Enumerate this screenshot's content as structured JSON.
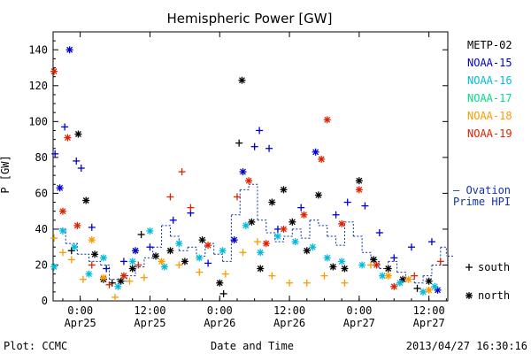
{
  "chart_data": {
    "type": "scatter",
    "title": "Hemispheric Power [GW]",
    "ylabel": "P [GW]",
    "xlabel": "Date and Time",
    "ylim": [
      0,
      150
    ],
    "y_ticks": [
      0,
      20,
      40,
      60,
      80,
      100,
      120,
      140
    ],
    "xlim": [
      "2013-04-24T19:20",
      "2013-04-27T15:15"
    ],
    "x_ticks": [
      {
        "x": "2013-04-25T00:00",
        "label": "0:00",
        "sublabel": "Apr25"
      },
      {
        "x": "2013-04-25T12:00",
        "label": "12:00",
        "sublabel": "Apr25"
      },
      {
        "x": "2013-04-26T00:00",
        "label": "0:00",
        "sublabel": "Apr26"
      },
      {
        "x": "2013-04-26T12:00",
        "label": "12:00",
        "sublabel": "Apr26"
      },
      {
        "x": "2013-04-27T00:00",
        "label": "0:00",
        "sublabel": "Apr27"
      },
      {
        "x": "2013-04-27T12:00",
        "label": "12:00",
        "sublabel": "Apr27"
      }
    ],
    "legend_placement": "right",
    "series": [
      {
        "name": "METP-02",
        "color": "#000000",
        "points": [
          {
            "x": "2013-04-24T22:30",
            "y": 28,
            "m": "south"
          },
          {
            "x": "2013-04-24T23:40",
            "y": 93,
            "m": "north"
          },
          {
            "x": "2013-04-25T01:00",
            "y": 56,
            "m": "north"
          },
          {
            "x": "2013-04-25T02:30",
            "y": 26,
            "m": "north"
          },
          {
            "x": "2013-04-25T04:00",
            "y": 12,
            "m": "north"
          },
          {
            "x": "2013-04-25T05:30",
            "y": 10,
            "m": "south"
          },
          {
            "x": "2013-04-25T07:00",
            "y": 11,
            "m": "north"
          },
          {
            "x": "2013-04-25T09:00",
            "y": 18,
            "m": "north"
          },
          {
            "x": "2013-04-25T10:30",
            "y": 37,
            "m": "south"
          },
          {
            "x": "2013-04-25T13:00",
            "y": 25,
            "m": "north"
          },
          {
            "x": "2013-04-25T15:30",
            "y": 28,
            "m": "north"
          },
          {
            "x": "2013-04-25T18:00",
            "y": 22,
            "m": "north"
          },
          {
            "x": "2013-04-25T21:00",
            "y": 34,
            "m": "north"
          },
          {
            "x": "2013-04-26T00:00",
            "y": 10,
            "m": "north"
          },
          {
            "x": "2013-04-26T00:40",
            "y": 4,
            "m": "south"
          },
          {
            "x": "2013-04-26T03:20",
            "y": 88,
            "m": "south"
          },
          {
            "x": "2013-04-26T03:50",
            "y": 123,
            "m": "north"
          },
          {
            "x": "2013-04-26T05:30",
            "y": 44,
            "m": "north"
          },
          {
            "x": "2013-04-26T07:00",
            "y": 18,
            "m": "north"
          },
          {
            "x": "2013-04-26T09:00",
            "y": 55,
            "m": "north"
          },
          {
            "x": "2013-04-26T11:00",
            "y": 62,
            "m": "north"
          },
          {
            "x": "2013-04-26T12:30",
            "y": 44,
            "m": "north"
          },
          {
            "x": "2013-04-26T15:00",
            "y": 28,
            "m": "north"
          },
          {
            "x": "2013-04-26T17:00",
            "y": 59,
            "m": "north"
          },
          {
            "x": "2013-04-26T19:30",
            "y": 19,
            "m": "north"
          },
          {
            "x": "2013-04-26T21:30",
            "y": 18,
            "m": "north"
          },
          {
            "x": "2013-04-27T00:00",
            "y": 67,
            "m": "north"
          },
          {
            "x": "2013-04-27T02:30",
            "y": 23,
            "m": "north"
          },
          {
            "x": "2013-04-27T05:00",
            "y": 18,
            "m": "north"
          },
          {
            "x": "2013-04-27T07:30",
            "y": 12,
            "m": "north"
          },
          {
            "x": "2013-04-27T10:00",
            "y": 7,
            "m": "south"
          },
          {
            "x": "2013-04-27T12:00",
            "y": 11,
            "m": "north"
          }
        ]
      },
      {
        "name": "NOAA-15",
        "color": "#0000cc",
        "points": [
          {
            "x": "2013-04-24T19:40",
            "y": 82,
            "m": "south"
          },
          {
            "x": "2013-04-24T20:30",
            "y": 63,
            "m": "north"
          },
          {
            "x": "2013-04-24T21:20",
            "y": 97,
            "m": "south"
          },
          {
            "x": "2013-04-24T22:10",
            "y": 140,
            "m": "north"
          },
          {
            "x": "2013-04-24T23:20",
            "y": 78,
            "m": "south"
          },
          {
            "x": "2013-04-25T00:10",
            "y": 74,
            "m": "south"
          },
          {
            "x": "2013-04-25T02:00",
            "y": 41,
            "m": "south"
          },
          {
            "x": "2013-04-25T04:30",
            "y": 18,
            "m": "south"
          },
          {
            "x": "2013-04-25T07:30",
            "y": 22,
            "m": "south"
          },
          {
            "x": "2013-04-25T09:30",
            "y": 28,
            "m": "north"
          },
          {
            "x": "2013-04-25T12:00",
            "y": 30,
            "m": "south"
          },
          {
            "x": "2013-04-25T16:00",
            "y": 45,
            "m": "south"
          },
          {
            "x": "2013-04-25T19:00",
            "y": 49,
            "m": "south"
          },
          {
            "x": "2013-04-25T22:00",
            "y": 21,
            "m": "south"
          },
          {
            "x": "2013-04-26T02:30",
            "y": 34,
            "m": "north"
          },
          {
            "x": "2013-04-26T04:00",
            "y": 72,
            "m": "north"
          },
          {
            "x": "2013-04-26T06:00",
            "y": 86,
            "m": "south"
          },
          {
            "x": "2013-04-26T06:50",
            "y": 95,
            "m": "south"
          },
          {
            "x": "2013-04-26T08:30",
            "y": 85,
            "m": "south"
          },
          {
            "x": "2013-04-26T10:00",
            "y": 40,
            "m": "south"
          },
          {
            "x": "2013-04-26T14:00",
            "y": 52,
            "m": "south"
          },
          {
            "x": "2013-04-26T16:30",
            "y": 83,
            "m": "north"
          },
          {
            "x": "2013-04-26T20:00",
            "y": 48,
            "m": "south"
          },
          {
            "x": "2013-04-26T22:00",
            "y": 55,
            "m": "south"
          },
          {
            "x": "2013-04-27T01:00",
            "y": 53,
            "m": "south"
          },
          {
            "x": "2013-04-27T03:30",
            "y": 38,
            "m": "south"
          },
          {
            "x": "2013-04-27T06:00",
            "y": 24,
            "m": "south"
          },
          {
            "x": "2013-04-27T09:00",
            "y": 30,
            "m": "south"
          },
          {
            "x": "2013-04-27T12:30",
            "y": 33,
            "m": "south"
          },
          {
            "x": "2013-04-27T13:30",
            "y": 6,
            "m": "north"
          }
        ]
      },
      {
        "name": "NOAA-16",
        "color": "#00bbdd",
        "points": [
          {
            "x": "2013-04-24T19:30",
            "y": 19,
            "m": "north"
          },
          {
            "x": "2013-04-24T21:00",
            "y": 39,
            "m": "north"
          },
          {
            "x": "2013-04-24T23:00",
            "y": 30,
            "m": "north"
          },
          {
            "x": "2013-04-25T01:30",
            "y": 15,
            "m": "north"
          },
          {
            "x": "2013-04-25T04:00",
            "y": 24,
            "m": "north"
          },
          {
            "x": "2013-04-25T06:30",
            "y": 8,
            "m": "north"
          },
          {
            "x": "2013-04-25T09:00",
            "y": 22,
            "m": "north"
          },
          {
            "x": "2013-04-25T12:00",
            "y": 39,
            "m": "north"
          },
          {
            "x": "2013-04-25T14:30",
            "y": 19,
            "m": "north"
          },
          {
            "x": "2013-04-25T17:00",
            "y": 32,
            "m": "north"
          },
          {
            "x": "2013-04-25T20:30",
            "y": 24,
            "m": "north"
          },
          {
            "x": "2013-04-26T00:30",
            "y": 28,
            "m": "north"
          },
          {
            "x": "2013-04-26T04:30",
            "y": 42,
            "m": "north"
          },
          {
            "x": "2013-04-26T07:00",
            "y": 27,
            "m": "north"
          },
          {
            "x": "2013-04-26T10:00",
            "y": 36,
            "m": "north"
          },
          {
            "x": "2013-04-26T13:00",
            "y": 33,
            "m": "north"
          },
          {
            "x": "2013-04-26T16:00",
            "y": 30,
            "m": "north"
          },
          {
            "x": "2013-04-26T18:30",
            "y": 24,
            "m": "north"
          },
          {
            "x": "2013-04-26T21:00",
            "y": 22,
            "m": "north"
          },
          {
            "x": "2013-04-27T00:30",
            "y": 20,
            "m": "north"
          },
          {
            "x": "2013-04-27T04:00",
            "y": 14,
            "m": "north"
          },
          {
            "x": "2013-04-27T07:00",
            "y": 10,
            "m": "north"
          },
          {
            "x": "2013-04-27T11:00",
            "y": 5,
            "m": "north"
          },
          {
            "x": "2013-04-27T13:00",
            "y": 8,
            "m": "north"
          }
        ]
      },
      {
        "name": "NOAA-17",
        "color": "#00dd88",
        "points": []
      },
      {
        "name": "NOAA-18",
        "color": "#ff9900",
        "points": [
          {
            "x": "2013-04-24T19:30",
            "y": 35,
            "m": "south"
          },
          {
            "x": "2013-04-24T21:00",
            "y": 27,
            "m": "south"
          },
          {
            "x": "2013-04-24T22:30",
            "y": 23,
            "m": "south"
          },
          {
            "x": "2013-04-25T00:30",
            "y": 12,
            "m": "south"
          },
          {
            "x": "2013-04-25T02:00",
            "y": 34,
            "m": "north"
          },
          {
            "x": "2013-04-25T04:00",
            "y": 13,
            "m": "north"
          },
          {
            "x": "2013-04-25T06:00",
            "y": 2,
            "m": "south"
          },
          {
            "x": "2013-04-25T08:30",
            "y": 11,
            "m": "south"
          },
          {
            "x": "2013-04-25T11:00",
            "y": 13,
            "m": "south"
          },
          {
            "x": "2013-04-25T14:00",
            "y": 22,
            "m": "north"
          },
          {
            "x": "2013-04-25T17:00",
            "y": 20,
            "m": "south"
          },
          {
            "x": "2013-04-25T20:30",
            "y": 16,
            "m": "south"
          },
          {
            "x": "2013-04-26T01:00",
            "y": 15,
            "m": "south"
          },
          {
            "x": "2013-04-26T04:00",
            "y": 27,
            "m": "south"
          },
          {
            "x": "2013-04-26T06:30",
            "y": 33,
            "m": "south"
          },
          {
            "x": "2013-04-26T09:00",
            "y": 14,
            "m": "south"
          },
          {
            "x": "2013-04-26T12:00",
            "y": 10,
            "m": "south"
          },
          {
            "x": "2013-04-26T15:00",
            "y": 10,
            "m": "south"
          },
          {
            "x": "2013-04-26T18:00",
            "y": 14,
            "m": "south"
          },
          {
            "x": "2013-04-26T21:30",
            "y": 10,
            "m": "south"
          },
          {
            "x": "2013-04-27T02:00",
            "y": 20,
            "m": "south"
          },
          {
            "x": "2013-04-27T05:00",
            "y": 14,
            "m": "north"
          },
          {
            "x": "2013-04-27T08:30",
            "y": 12,
            "m": "north"
          },
          {
            "x": "2013-04-27T12:00",
            "y": 6,
            "m": "north"
          }
        ]
      },
      {
        "name": "NOAA-19",
        "color": "#dd2200",
        "points": [
          {
            "x": "2013-04-24T19:30",
            "y": 128,
            "m": "north"
          },
          {
            "x": "2013-04-24T21:00",
            "y": 50,
            "m": "north"
          },
          {
            "x": "2013-04-24T21:50",
            "y": 91,
            "m": "north"
          },
          {
            "x": "2013-04-24T23:30",
            "y": 42,
            "m": "north"
          },
          {
            "x": "2013-04-25T02:00",
            "y": 20,
            "m": "south"
          },
          {
            "x": "2013-04-25T05:00",
            "y": 9,
            "m": "south"
          },
          {
            "x": "2013-04-25T07:30",
            "y": 14,
            "m": "north"
          },
          {
            "x": "2013-04-25T10:00",
            "y": 20,
            "m": "south"
          },
          {
            "x": "2013-04-25T15:30",
            "y": 58,
            "m": "south"
          },
          {
            "x": "2013-04-25T17:30",
            "y": 72,
            "m": "south"
          },
          {
            "x": "2013-04-25T19:00",
            "y": 52,
            "m": "south"
          },
          {
            "x": "2013-04-25T22:00",
            "y": 31,
            "m": "north"
          },
          {
            "x": "2013-04-26T03:00",
            "y": 58,
            "m": "south"
          },
          {
            "x": "2013-04-26T05:00",
            "y": 67,
            "m": "north"
          },
          {
            "x": "2013-04-26T08:00",
            "y": 32,
            "m": "north"
          },
          {
            "x": "2013-04-26T11:00",
            "y": 40,
            "m": "north"
          },
          {
            "x": "2013-04-26T14:30",
            "y": 48,
            "m": "north"
          },
          {
            "x": "2013-04-26T17:30",
            "y": 79,
            "m": "north"
          },
          {
            "x": "2013-04-26T18:30",
            "y": 101,
            "m": "north"
          },
          {
            "x": "2013-04-26T21:00",
            "y": 43,
            "m": "north"
          },
          {
            "x": "2013-04-27T00:00",
            "y": 62,
            "m": "north"
          },
          {
            "x": "2013-04-27T03:00",
            "y": 20,
            "m": "north"
          },
          {
            "x": "2013-04-27T06:00",
            "y": 8,
            "m": "north"
          },
          {
            "x": "2013-04-27T09:30",
            "y": 14,
            "m": "south"
          },
          {
            "x": "2013-04-27T14:00",
            "y": 22,
            "m": "south"
          }
        ]
      }
    ],
    "ovation": {
      "name": "Ovation Prime HPI",
      "color": "#1133aa",
      "label_lines": [
        "— Ovation",
        "Prime HPI"
      ],
      "points": [
        [
          "2013-04-24T19:30",
          40
        ],
        [
          "2013-04-24T21:30",
          32
        ],
        [
          "2013-04-24T23:30",
          26
        ],
        [
          "2013-04-25T01:30",
          22
        ],
        [
          "2013-04-25T03:30",
          20
        ],
        [
          "2013-04-25T05:00",
          12
        ],
        [
          "2013-04-25T06:30",
          11
        ],
        [
          "2013-04-25T08:00",
          14
        ],
        [
          "2013-04-25T09:30",
          19
        ],
        [
          "2013-04-25T11:00",
          24
        ],
        [
          "2013-04-25T12:30",
          30
        ],
        [
          "2013-04-25T14:00",
          42
        ],
        [
          "2013-04-25T15:30",
          36
        ],
        [
          "2013-04-25T17:00",
          28
        ],
        [
          "2013-04-25T18:30",
          30
        ],
        [
          "2013-04-25T20:00",
          25
        ],
        [
          "2013-04-25T21:30",
          32
        ],
        [
          "2013-04-25T23:00",
          26
        ],
        [
          "2013-04-26T00:30",
          22
        ],
        [
          "2013-04-26T02:00",
          48
        ],
        [
          "2013-04-26T03:30",
          62
        ],
        [
          "2013-04-26T05:00",
          65
        ],
        [
          "2013-04-26T06:30",
          45
        ],
        [
          "2013-04-26T08:00",
          38
        ],
        [
          "2013-04-26T09:30",
          33
        ],
        [
          "2013-04-26T11:00",
          36
        ],
        [
          "2013-04-26T12:30",
          40
        ],
        [
          "2013-04-26T14:00",
          35
        ],
        [
          "2013-04-26T15:30",
          45
        ],
        [
          "2013-04-26T17:00",
          42
        ],
        [
          "2013-04-26T18:30",
          36
        ],
        [
          "2013-04-26T20:00",
          31
        ],
        [
          "2013-04-26T21:30",
          44
        ],
        [
          "2013-04-26T23:00",
          36
        ],
        [
          "2013-04-27T00:30",
          27
        ],
        [
          "2013-04-27T02:00",
          22
        ],
        [
          "2013-04-27T03:30",
          18
        ],
        [
          "2013-04-27T05:00",
          22
        ],
        [
          "2013-04-27T06:30",
          16
        ],
        [
          "2013-04-27T08:00",
          12
        ],
        [
          "2013-04-27T09:30",
          10
        ],
        [
          "2013-04-27T11:00",
          14
        ],
        [
          "2013-04-27T12:30",
          20
        ],
        [
          "2013-04-27T14:00",
          30
        ],
        [
          "2013-04-27T15:00",
          25
        ]
      ]
    },
    "marker_legend": [
      {
        "symbol": "+",
        "label": "south"
      },
      {
        "symbol": "*",
        "label": "north"
      }
    ]
  },
  "footer": {
    "left": "Plot: CCMC",
    "right": "2013/04/27 16:30:16"
  }
}
